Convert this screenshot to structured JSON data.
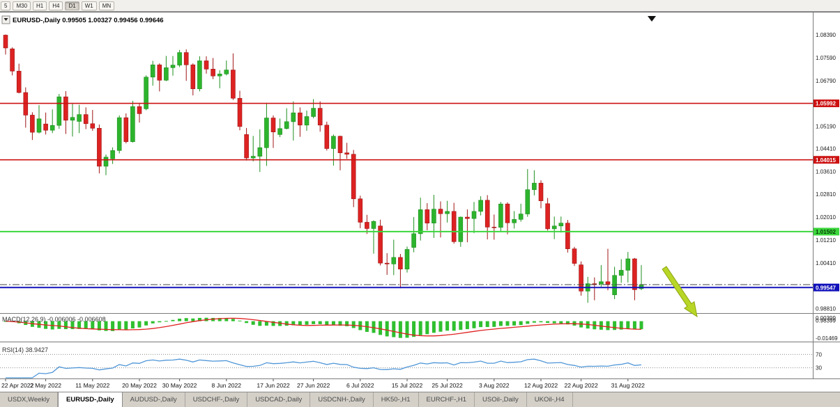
{
  "toolbar": {
    "timeframes": [
      {
        "label": "5",
        "active": false
      },
      {
        "label": "M30",
        "active": false
      },
      {
        "label": "H1",
        "active": false
      },
      {
        "label": "H4",
        "active": false
      },
      {
        "label": "D1",
        "active": true
      },
      {
        "label": "W1",
        "active": false
      },
      {
        "label": "MN",
        "active": false
      }
    ]
  },
  "header": {
    "symbol": "EURUSD-,Daily",
    "ohlc_text": "0.99505 1.00327 0.99456 0.99646"
  },
  "chart_data": {
    "type": "candlestick",
    "title": "EURUSD-,Daily",
    "ylim": [
      0.987,
      1.09
    ],
    "up_color": "#2db42d",
    "up_stroke": "#1e8f1e",
    "down_color": "#dd2222",
    "down_stroke": "#a01515",
    "ohlc": [
      [
        1.0838,
        1.084,
        1.077,
        1.0793
      ],
      [
        1.079,
        1.0795,
        1.0697,
        1.0712
      ],
      [
        1.0712,
        1.0738,
        1.0634,
        1.0637
      ],
      [
        1.0637,
        1.0655,
        1.0514,
        1.0558
      ],
      [
        1.0558,
        1.0568,
        1.0471,
        1.0498
      ],
      [
        1.0498,
        1.0593,
        1.0494,
        1.0545
      ],
      [
        1.0527,
        1.0567,
        1.049,
        1.0505
      ],
      [
        1.0505,
        1.0578,
        1.0495,
        1.0522
      ],
      [
        1.0522,
        1.0632,
        1.051,
        1.0622
      ],
      [
        1.0622,
        1.0642,
        1.0492,
        1.054
      ],
      [
        1.054,
        1.0599,
        1.0483,
        1.055
      ],
      [
        1.0536,
        1.0594,
        1.0495,
        1.056
      ],
      [
        1.056,
        1.0585,
        1.0509,
        1.0528
      ],
      [
        1.0528,
        1.0576,
        1.0503,
        1.0512
      ],
      [
        1.0512,
        1.0525,
        1.0354,
        1.0379
      ],
      [
        1.0379,
        1.042,
        1.0348,
        1.0411
      ],
      [
        1.0405,
        1.0445,
        1.0387,
        1.0434
      ],
      [
        1.0434,
        1.0557,
        1.0424,
        1.0549
      ],
      [
        1.0549,
        1.0564,
        1.0459,
        1.0465
      ],
      [
        1.0465,
        1.0608,
        1.0462,
        1.0588
      ],
      [
        1.0588,
        1.06,
        1.0532,
        1.0563
      ],
      [
        1.058,
        1.0697,
        1.0575,
        1.0691
      ],
      [
        1.0691,
        1.0748,
        1.0661,
        1.0734
      ],
      [
        1.0734,
        1.0739,
        1.0641,
        1.068
      ],
      [
        1.068,
        1.0765,
        1.0677,
        1.0724
      ],
      [
        1.0724,
        1.0765,
        1.0696,
        1.0733
      ],
      [
        1.0733,
        1.0786,
        1.0726,
        1.0777
      ],
      [
        1.0777,
        1.0788,
        1.0678,
        1.0734
      ],
      [
        1.0734,
        1.0739,
        1.0627,
        1.065
      ],
      [
        1.065,
        1.0764,
        1.0641,
        1.0748
      ],
      [
        1.0748,
        1.0764,
        1.0703,
        1.0719
      ],
      [
        1.0719,
        1.0758,
        1.0684,
        1.0695
      ],
      [
        1.0695,
        1.0715,
        1.0652,
        1.0702
      ],
      [
        1.0702,
        1.0749,
        1.0697,
        1.0716
      ],
      [
        1.0716,
        1.0774,
        1.0611,
        1.0617
      ],
      [
        1.0617,
        1.0643,
        1.0505,
        1.0518
      ],
      [
        1.049,
        1.0513,
        1.0399,
        1.0408
      ],
      [
        1.0408,
        1.0485,
        1.0396,
        1.0414
      ],
      [
        1.0414,
        1.0508,
        1.0359,
        1.0444
      ],
      [
        1.0444,
        1.0601,
        1.038,
        1.0548
      ],
      [
        1.0548,
        1.0557,
        1.0443,
        1.0499
      ],
      [
        1.049,
        1.0546,
        1.0481,
        1.0511
      ],
      [
        1.0511,
        1.0582,
        1.0508,
        1.0535
      ],
      [
        1.0535,
        1.0606,
        1.0469,
        1.0566
      ],
      [
        1.0566,
        1.0585,
        1.0482,
        1.0523
      ],
      [
        1.0523,
        1.0574,
        1.0503,
        1.0553
      ],
      [
        1.0553,
        1.0614,
        1.0547,
        1.0582
      ],
      [
        1.0582,
        1.0606,
        1.05,
        1.0523
      ],
      [
        1.0523,
        1.0535,
        1.0434,
        1.0441
      ],
      [
        1.0441,
        1.049,
        1.0381,
        1.0484
      ],
      [
        1.0484,
        1.0486,
        1.0365,
        1.0426
      ],
      [
        1.0426,
        1.0461,
        1.0405,
        1.0421
      ],
      [
        1.0421,
        1.0436,
        1.0236,
        1.0265
      ],
      [
        1.0265,
        1.0276,
        1.0162,
        1.0183
      ],
      [
        1.0183,
        1.0209,
        1.0142,
        1.0161
      ],
      [
        1.0161,
        1.019,
        1.0073,
        1.0186
      ],
      [
        1.017,
        1.0192,
        1.0032,
        1.004
      ],
      [
        1.004,
        1.0075,
        0.9999,
        1.0037
      ],
      [
        1.0037,
        1.0122,
        0.9998,
        1.006
      ],
      [
        1.006,
        1.0072,
        0.9952,
        1.0019
      ],
      [
        1.0019,
        1.0098,
        1.0007,
        1.0088
      ],
      [
        1.0095,
        1.0201,
        1.0078,
        1.0143
      ],
      [
        1.0143,
        1.0269,
        1.0119,
        1.0227
      ],
      [
        1.0227,
        1.025,
        1.0155,
        1.018
      ],
      [
        1.018,
        1.0279,
        1.0128,
        1.0229
      ],
      [
        1.0229,
        1.0256,
        1.013,
        1.0213
      ],
      [
        1.0213,
        1.0258,
        1.0182,
        1.0221
      ],
      [
        1.0221,
        1.0251,
        1.0108,
        1.0115
      ],
      [
        1.0115,
        1.0203,
        1.0097,
        1.0201
      ],
      [
        1.0201,
        1.0228,
        1.0113,
        1.0196
      ],
      [
        1.0196,
        1.0254,
        1.0145,
        1.0221
      ],
      [
        1.0221,
        1.0274,
        1.0207,
        1.026
      ],
      [
        1.026,
        1.0278,
        1.0123,
        1.0166
      ],
      [
        1.0166,
        1.021,
        1.0122,
        1.0165
      ],
      [
        1.0165,
        1.0254,
        1.0152,
        1.0247
      ],
      [
        1.0247,
        1.0253,
        1.0141,
        1.0181
      ],
      [
        1.0181,
        1.0222,
        1.0161,
        1.0193
      ],
      [
        1.0193,
        1.0248,
        1.0185,
        1.0212
      ],
      [
        1.0212,
        1.0369,
        1.0202,
        1.0297
      ],
      [
        1.0297,
        1.0365,
        1.0277,
        1.032
      ],
      [
        1.032,
        1.033,
        1.0232,
        1.0258
      ],
      [
        1.0248,
        1.0268,
        1.0154,
        1.016
      ],
      [
        1.016,
        1.0203,
        1.0124,
        1.017
      ],
      [
        1.017,
        1.0203,
        1.0147,
        1.018
      ],
      [
        1.018,
        1.0191,
        1.0077,
        1.009
      ],
      [
        1.009,
        1.0097,
        1.003,
        1.0039
      ],
      [
        1.0034,
        1.0046,
        0.9926,
        0.9942
      ],
      [
        0.9942,
        0.9992,
        0.9901,
        0.9968
      ],
      [
        0.9968,
        0.999,
        0.991,
        0.9967
      ],
      [
        0.9967,
        1.0033,
        0.9958,
        0.9975
      ],
      [
        0.9975,
        1.009,
        0.9945,
        0.9965
      ],
      [
        0.9929,
        1.0027,
        0.9914,
        0.9997
      ],
      [
        0.9997,
        1.0054,
        0.9971,
        1.0015
      ],
      [
        1.0015,
        1.0079,
        0.9972,
        1.0055
      ],
      [
        1.0055,
        1.0058,
        0.991,
        0.9947
      ],
      [
        0.99505,
        1.00327,
        0.99456,
        0.99646
      ]
    ],
    "x_tick_labels": [
      {
        "i": 0,
        "label": "22 Apr 2022"
      },
      {
        "i": 6,
        "label": "2 May 2022"
      },
      {
        "i": 13,
        "label": "11 May 2022"
      },
      {
        "i": 20,
        "label": "20 May 2022"
      },
      {
        "i": 26,
        "label": "30 May 2022"
      },
      {
        "i": 33,
        "label": "8 Jun 2022"
      },
      {
        "i": 40,
        "label": "17 Jun 2022"
      },
      {
        "i": 46,
        "label": "27 Jun 2022"
      },
      {
        "i": 53,
        "label": "6 Jul 2022"
      },
      {
        "i": 60,
        "label": "15 Jul 2022"
      },
      {
        "i": 66,
        "label": "25 Jul 2022"
      },
      {
        "i": 73,
        "label": "3 Aug 2022"
      },
      {
        "i": 80,
        "label": "12 Aug 2022"
      },
      {
        "i": 86,
        "label": "22 Aug 2022"
      },
      {
        "i": 93,
        "label": "31 Aug 2022"
      }
    ],
    "y_axis_plain_labels": [
      {
        "label": "1.08390",
        "price": 1.0839
      },
      {
        "label": "1.07590",
        "price": 1.0759
      },
      {
        "label": "1.06790",
        "price": 1.0679
      },
      {
        "label": "1.05190",
        "price": 1.0519
      },
      {
        "label": "1.04410",
        "price": 1.0441
      },
      {
        "label": "1.03610",
        "price": 1.0361
      },
      {
        "label": "1.02810",
        "price": 1.0281
      },
      {
        "label": "1.02010",
        "price": 1.0201
      },
      {
        "label": "1.01210",
        "price": 1.0121
      },
      {
        "label": "1.00410",
        "price": 1.0041
      },
      {
        "label": "0.98810",
        "price": 0.9881
      },
      {
        "label": "0.98399",
        "price": 0.98399
      }
    ],
    "price_lines": [
      {
        "price": 1.05992,
        "label": "1.05992",
        "color": "#cc1111",
        "width": 1.6,
        "badge_text": "#ffffff"
      },
      {
        "price": 1.04015,
        "label": "1.04015",
        "color": "#cc1111",
        "width": 1.6,
        "badge_text": "#ffffff"
      },
      {
        "price": 1.01502,
        "label": "1.01502",
        "color": "#3bd63b",
        "width": 2,
        "badge_text": "#073807"
      },
      {
        "price": 0.99547,
        "label": "0.99547",
        "color": "#1111bb",
        "width": 2,
        "badge_text": "#ffffff"
      }
    ],
    "close_line_price": 0.99646,
    "indicators": {
      "macd": {
        "name": "MACD(12,26,9)",
        "values_text": "-0.006006 -0.006608",
        "fast": 12,
        "slow": 26,
        "signal": 9,
        "scale_top": "0.00399",
        "scale_bottom": "-0.01469",
        "hist_color": "#2fbf2f",
        "signal_color": "#e02020"
      },
      "rsi": {
        "name": "RSI(14)",
        "value_text": "38.9427",
        "period": 14,
        "levels": [
          "70",
          "30"
        ],
        "line_color": "#4f96d8"
      }
    },
    "annotation_arrow": {
      "from": [
        953,
        368
      ],
      "to": [
        1000,
        438
      ],
      "fill": "#b8d626",
      "stroke": "#8ea50f"
    }
  },
  "tabs": [
    {
      "label": "USDX,Weekly",
      "active": false
    },
    {
      "label": "EURUSD-,Daily",
      "active": true
    },
    {
      "label": "AUDUSD-,Daily",
      "active": false
    },
    {
      "label": "USDCHF-,Daily",
      "active": false
    },
    {
      "label": "USDCAD-,Daily",
      "active": false
    },
    {
      "label": "USDCNH-,Daily",
      "active": false
    },
    {
      "label": "HK50-,H1",
      "active": false
    },
    {
      "label": "EURCHF-,H1",
      "active": false
    },
    {
      "label": "USOil-,Daily",
      "active": false
    },
    {
      "label": "UKOil-,H4",
      "active": false
    }
  ]
}
